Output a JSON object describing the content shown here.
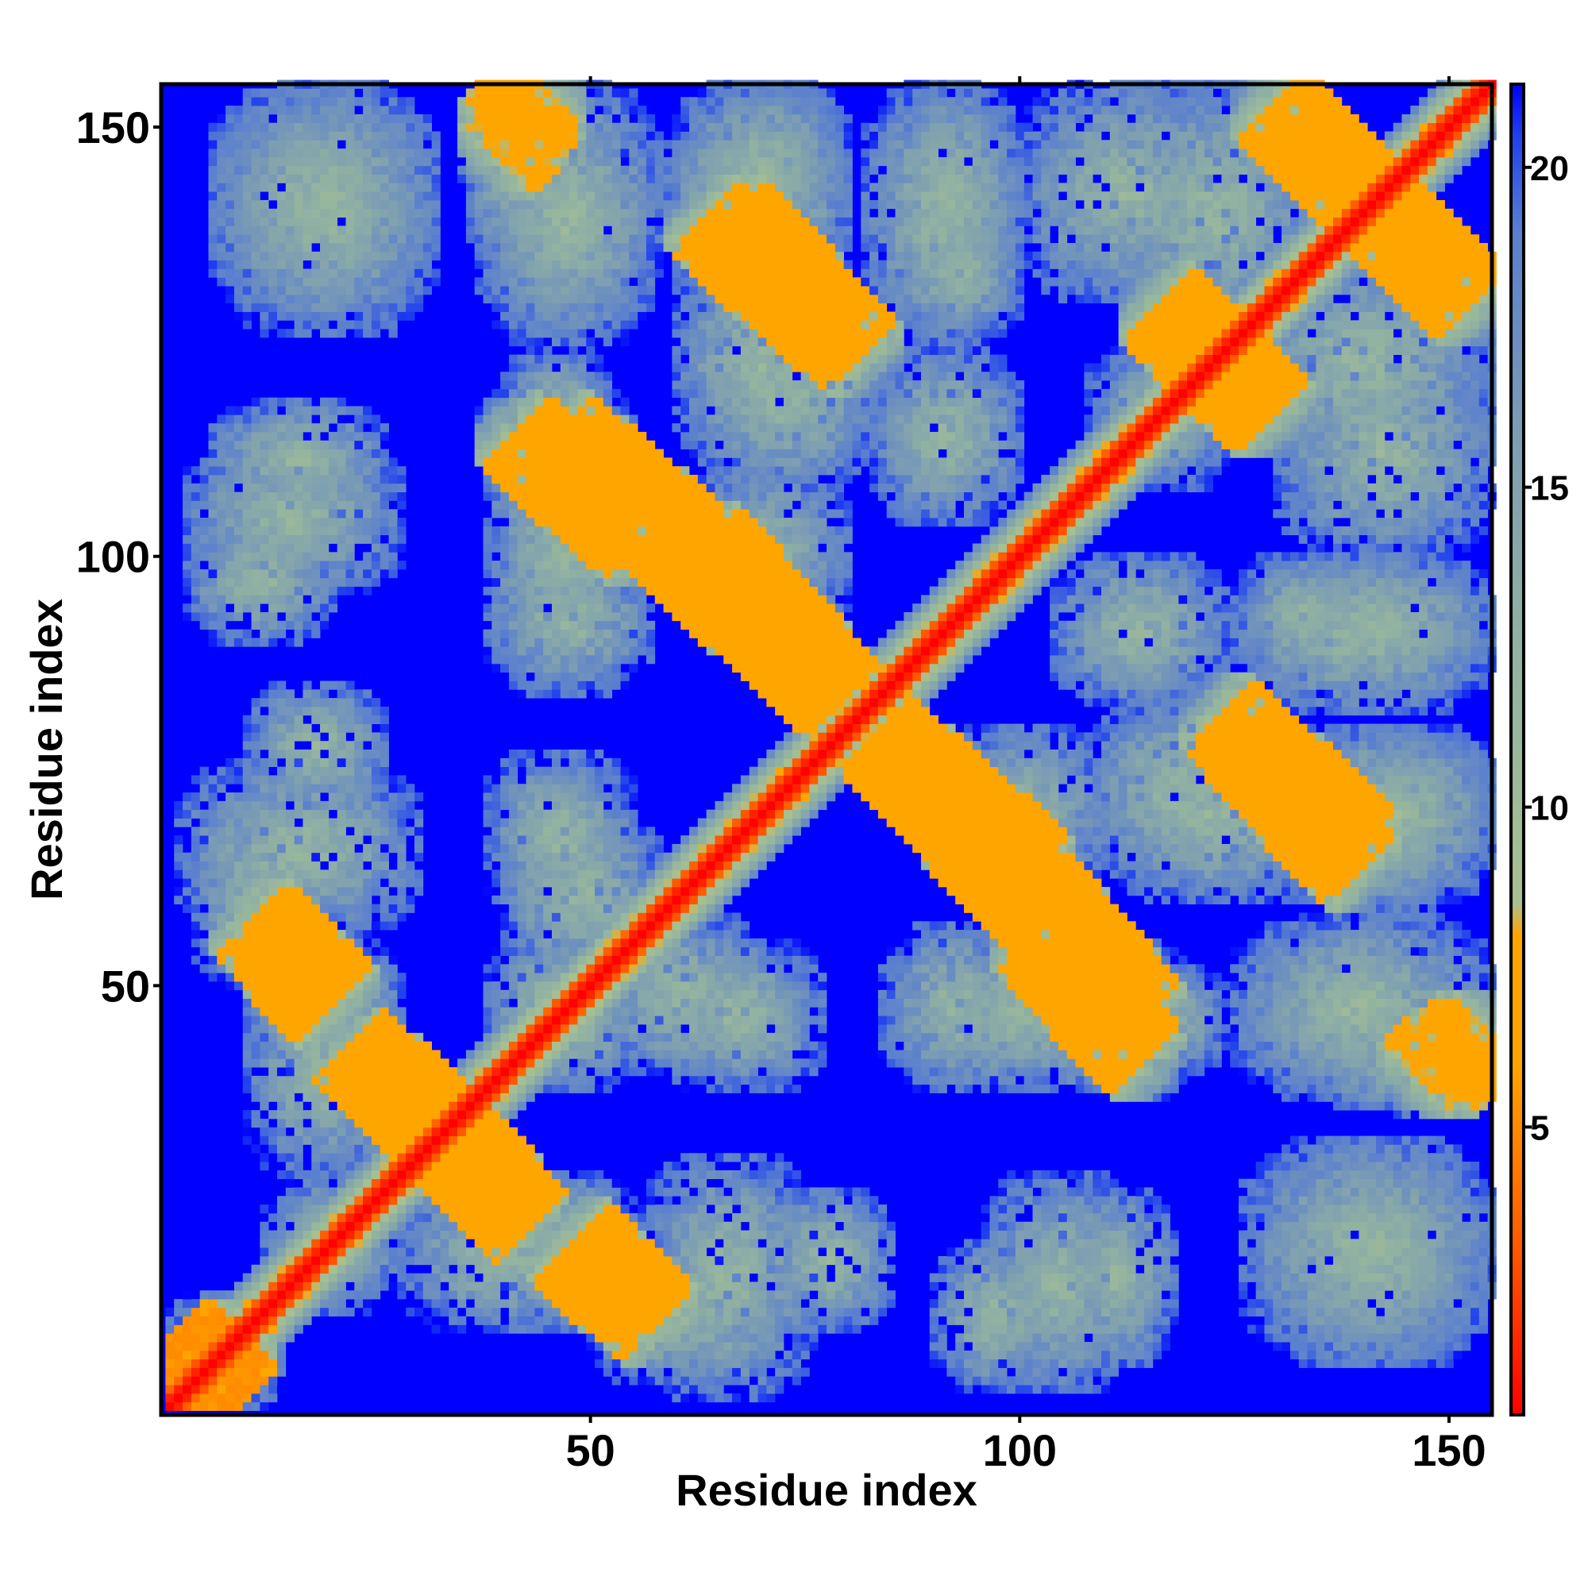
{
  "chart_data": {
    "type": "heatmap",
    "title": "",
    "xlabel": "Residue index",
    "ylabel": "Residue index",
    "xlim": [
      1,
      155
    ],
    "ylim": [
      1,
      155
    ],
    "x_ticks": [
      50,
      100,
      150
    ],
    "y_ticks": [
      50,
      100,
      150
    ],
    "x_tick_labels": [
      "50",
      "100",
      "150"
    ],
    "y_tick_labels": [
      "50",
      "100",
      "150"
    ],
    "grid": false,
    "legend": "colorbar-right",
    "colorbar": {
      "range": [
        0.5,
        21.3
      ],
      "ticks": [
        5,
        10,
        15,
        20
      ],
      "tick_labels": [
        "5",
        "10",
        "15",
        "20"
      ],
      "stops": [
        {
          "value": 0.5,
          "color": "#ff0000"
        },
        {
          "value": 3.0,
          "color": "#ff5500"
        },
        {
          "value": 6.0,
          "color": "#ffa500"
        },
        {
          "value": 8.0,
          "color": "#ffa500"
        },
        {
          "value": 8.5,
          "color": "#a8c090"
        },
        {
          "value": 12.0,
          "color": "#94b4a0"
        },
        {
          "value": 15.5,
          "color": "#7fa0b0"
        },
        {
          "value": 19.0,
          "color": "#5a7fcf"
        },
        {
          "value": 20.5,
          "color": "#2040ee"
        },
        {
          "value": 21.3,
          "color": "#0000ff"
        }
      ]
    },
    "description": "Residue-residue distance map (distance units), symmetric about the main diagonal; blue = distance at/above cutoff (~21)",
    "main_diagonal": {
      "from": 1,
      "to": 155,
      "value": 0.5
    },
    "contact_bands": [
      {
        "type": "anti",
        "x": [
          12,
          20
        ],
        "y": [
          57,
          49
        ],
        "value": 6,
        "width": 1.2
      },
      {
        "type": "anti",
        "x": [
          24,
          31
        ],
        "y": [
          41,
          34
        ],
        "value": 6,
        "width": 1.6
      },
      {
        "type": "anti",
        "x": [
          35,
          42
        ],
        "y": [
          31,
          23
        ],
        "value": 6,
        "width": 1.6
      },
      {
        "type": "anti",
        "x": [
          48,
          57
        ],
        "y": [
          19,
          11
        ],
        "value": 6,
        "width": 1.2
      },
      {
        "type": "anti",
        "x": [
          42,
          55
        ],
        "y": [
          114,
          102
        ],
        "value": 6,
        "width": 1.3
      },
      {
        "type": "anti",
        "x": [
          58,
          78
        ],
        "y": [
          103,
          84
        ],
        "value": 6,
        "width": 1.3
      },
      {
        "type": "anti",
        "x": [
          64,
          78
        ],
        "y": [
          139,
          126
        ],
        "value": 6,
        "width": 1.3
      },
      {
        "type": "anti",
        "x": [
          84,
          101
        ],
        "y": [
          79,
          64
        ],
        "value": 6,
        "width": 1.3
      },
      {
        "type": "anti",
        "x": [
          102,
          114
        ],
        "y": [
          61,
          47
        ],
        "value": 6,
        "width": 1.3
      },
      {
        "type": "anti",
        "x": [
          124,
          139
        ],
        "y": [
          81,
          67
        ],
        "value": 6,
        "width": 1.3
      },
      {
        "type": "anti",
        "x": [
          130,
          146
        ],
        "y": [
          152,
          136
        ],
        "value": 6,
        "width": 1.3
      },
      {
        "type": "anti",
        "x": [
          117,
          128
        ],
        "y": [
          129,
          117
        ],
        "value": 6,
        "width": 1.2
      },
      {
        "type": "para",
        "x": [
          40,
          44
        ],
        "y": [
          150,
          154
        ],
        "value": 7,
        "width": 1.2
      },
      {
        "type": "para",
        "x": [
          147,
          152
        ],
        "y": [
          40,
          44
        ],
        "value": 7,
        "width": 1.2
      },
      {
        "type": "para",
        "x": [
          1,
          8
        ],
        "y": [
          1,
          8
        ],
        "value": 5,
        "width": 2.5
      }
    ],
    "gray_regions": [
      {
        "x": [
          6,
          32
        ],
        "y": [
          128,
          155
        ]
      },
      {
        "x": [
          37,
          58
        ],
        "y": [
          125,
          155
        ]
      },
      {
        "x": [
          60,
          80
        ],
        "y": [
          125,
          155
        ]
      },
      {
        "x": [
          82,
          100
        ],
        "y": [
          125,
          155
        ]
      },
      {
        "x": [
          110,
          135
        ],
        "y": [
          125,
          155
        ]
      },
      {
        "x": [
          58,
          80
        ],
        "y": [
          138,
          150
        ]
      },
      {
        "x": [
          86,
          100
        ],
        "y": [
          126,
          140
        ]
      },
      {
        "x": [
          3,
          28
        ],
        "y": [
          96,
          113
        ]
      },
      {
        "x": [
          38,
          56
        ],
        "y": [
          84,
          120
        ]
      },
      {
        "x": [
          62,
          83
        ],
        "y": [
          108,
          128
        ]
      },
      {
        "x": [
          83,
          100
        ],
        "y": [
          104,
          124
        ]
      },
      {
        "x": [
          108,
          128
        ],
        "y": [
          112,
          124
        ]
      },
      {
        "x": [
          130,
          155
        ],
        "y": [
          100,
          125
        ]
      },
      {
        "x": [
          106,
          120
        ],
        "y": [
          85,
          96
        ]
      },
      {
        "x": [
          128,
          155
        ],
        "y": [
          84,
          100
        ]
      },
      {
        "x": [
          2,
          30
        ],
        "y": [
          56,
          76
        ]
      },
      {
        "x": [
          38,
          55
        ],
        "y": [
          58,
          77
        ]
      },
      {
        "x": [
          75,
          85
        ],
        "y": [
          76,
          88
        ]
      },
      {
        "x": [
          90,
          110
        ],
        "y": [
          60,
          80
        ]
      },
      {
        "x": [
          110,
          135
        ],
        "y": [
          60,
          80
        ]
      },
      {
        "x": [
          136,
          155
        ],
        "y": [
          60,
          80
        ]
      },
      {
        "x": [
          10,
          28
        ],
        "y": [
          40,
          55
        ]
      },
      {
        "x": [
          38,
          52
        ],
        "y": [
          40,
          55
        ]
      },
      {
        "x": [
          51,
          70
        ],
        "y": [
          40,
          58
        ]
      },
      {
        "x": [
          85,
          100
        ],
        "y": [
          38,
          57
        ]
      },
      {
        "x": [
          108,
          124
        ],
        "y": [
          40,
          52
        ]
      },
      {
        "x": [
          126,
          150
        ],
        "y": [
          38,
          56
        ]
      },
      {
        "x": [
          134,
          155
        ],
        "y": [
          36,
          46
        ]
      },
      {
        "x": [
          12,
          28
        ],
        "y": [
          14,
          26
        ]
      },
      {
        "x": [
          28,
          52
        ],
        "y": [
          10,
          28
        ]
      },
      {
        "x": [
          50,
          70
        ],
        "y": [
          4,
          18
        ]
      },
      {
        "x": [
          70,
          85
        ],
        "y": [
          10,
          26
        ]
      },
      {
        "x": [
          90,
          105
        ],
        "y": [
          3,
          20
        ]
      },
      {
        "x": [
          104,
          118
        ],
        "y": [
          6,
          26
        ]
      },
      {
        "x": [
          126,
          155
        ],
        "y": [
          6,
          32
        ]
      },
      {
        "x": [
          1,
          14
        ],
        "y": [
          1,
          12
        ]
      }
    ]
  }
}
